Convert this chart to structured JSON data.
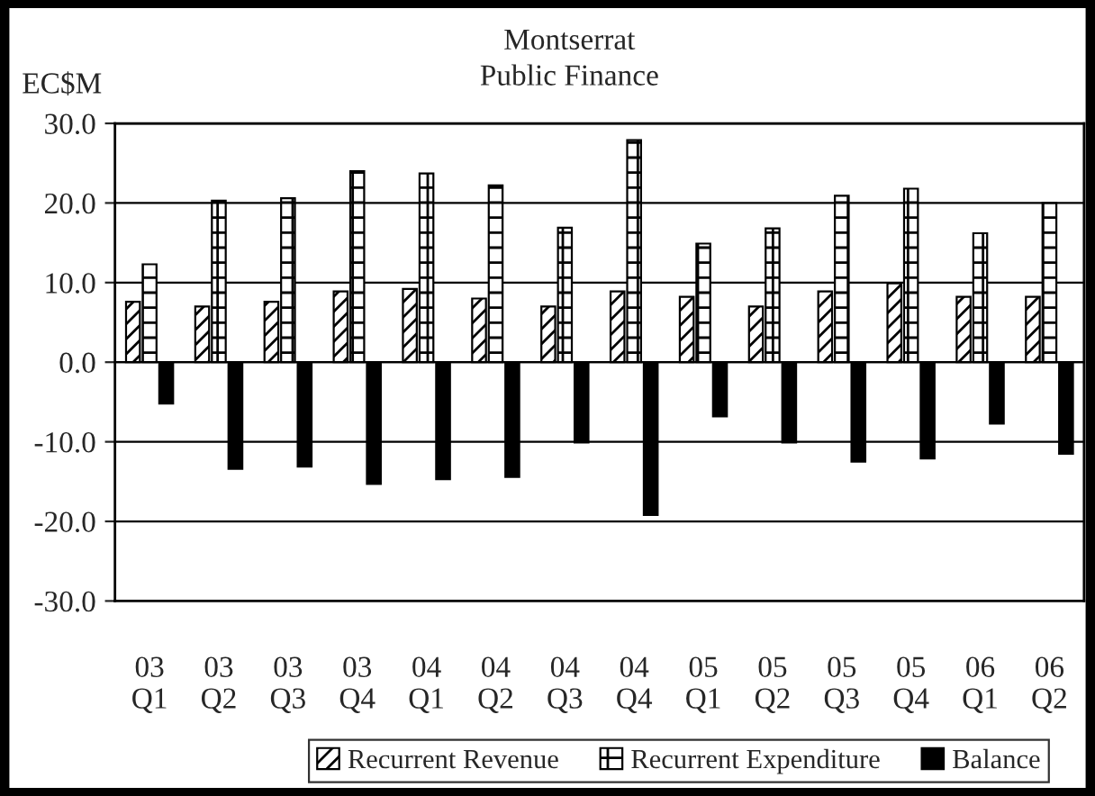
{
  "chart_data": {
    "type": "bar",
    "title": "Montserrat",
    "subtitle": "Public Finance",
    "ylabel": "EC$M",
    "categories": [
      "03\nQ1",
      "03\nQ2",
      "03\nQ3",
      "03\nQ4",
      "04\nQ1",
      "04\nQ2",
      "04\nQ3",
      "04\nQ4",
      "05\nQ1",
      "05\nQ2",
      "05\nQ3",
      "05\nQ4",
      "06\nQ1",
      "06\nQ2"
    ],
    "series": [
      {
        "name": "Recurrent Revenue",
        "color": "#000000",
        "values": [
          7.6,
          7.0,
          7.6,
          8.9,
          9.2,
          8.0,
          7.0,
          8.9,
          8.2,
          7.0,
          8.9,
          9.9,
          8.2,
          8.2
        ]
      },
      {
        "name": "Recurrent Expenditure",
        "color": "#000000",
        "values": [
          12.3,
          20.3,
          20.6,
          24.0,
          23.7,
          22.2,
          16.9,
          27.9,
          14.9,
          16.8,
          20.9,
          21.8,
          16.2,
          20.0
        ]
      },
      {
        "name": "Balance",
        "color": "#000000",
        "values": [
          -5.2,
          -13.4,
          -13.1,
          -15.3,
          -14.7,
          -14.4,
          -10.1,
          -19.2,
          -6.8,
          -10.1,
          -12.5,
          -12.1,
          -7.7,
          -11.5
        ]
      }
    ],
    "ylim": [
      -30,
      30
    ],
    "yticks": [
      {
        "value": -30,
        "label": "-30.0"
      },
      {
        "value": -20,
        "label": "-20.0"
      },
      {
        "value": -10,
        "label": "-10.0"
      },
      {
        "value": 0,
        "label": "0.0"
      },
      {
        "value": 10,
        "label": "10.0"
      },
      {
        "value": 20,
        "label": "20.0"
      },
      {
        "value": 30,
        "label": "30.0"
      }
    ],
    "grid": "y",
    "legend": "bottom"
  }
}
